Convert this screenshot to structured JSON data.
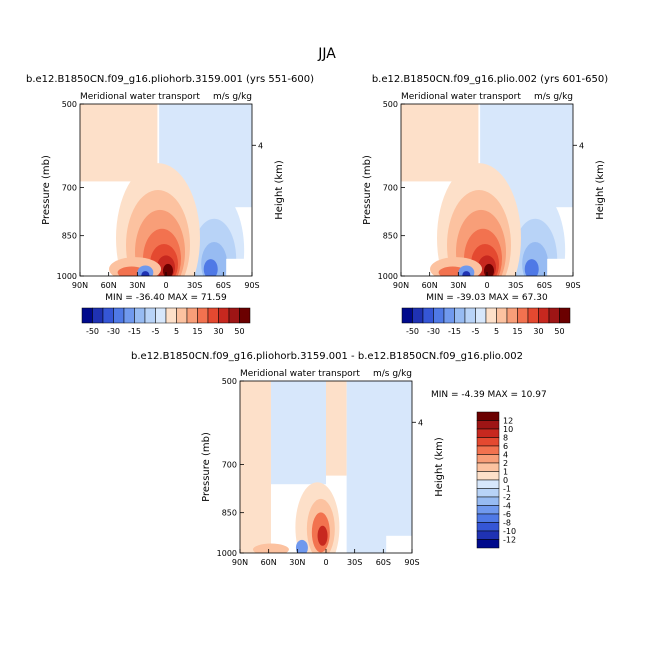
{
  "figure_title": "JJA",
  "colors": {
    "positive_scale": [
      "#fde0c9",
      "#fcc2a0",
      "#f89e78",
      "#f2724f",
      "#e44930",
      "#c7281f",
      "#9e1515",
      "#6b0000"
    ],
    "negative_scale": [
      "#d7e7fb",
      "#b8d3f7",
      "#97bbf2",
      "#7099ee",
      "#4f79e6",
      "#3556d6",
      "#1f32b3",
      "#000a8c"
    ],
    "neutral": "#ffffff"
  },
  "panels": [
    {
      "title": "b.e12.B1850CN.f09_g16.pliohorb.3159.001 (yrs 551-600)",
      "subtitle_left": "Meridional water transport",
      "subtitle_right": "m/s g/kg",
      "minmax_text": "MIN = -36.40   MAX =  71.59"
    },
    {
      "title": "b.e12.B1850CN.f09_g16.plio.002 (yrs 601-650)",
      "subtitle_left": "Meridional water transport",
      "subtitle_right": "m/s g/kg",
      "minmax_text": "MIN = -39.03   MAX =  67.30"
    },
    {
      "title": "b.e12.B1850CN.f09_g16.pliohorb.3159.001 - b.e12.B1850CN.f09_g16.plio.002",
      "subtitle_left": "Meridional water transport",
      "subtitle_right": "m/s g/kg",
      "minmax_text": "MIN =  -4.39   MAX =  10.97"
    }
  ],
  "axes": {
    "ylabel": "Pressure (mb)",
    "ylabel_right": "Height (km)",
    "yticks": [
      "500",
      "700",
      "850",
      "1000"
    ],
    "right_tick": "4",
    "xticks": [
      "90N",
      "60N",
      "30N",
      "0",
      "30S",
      "60S",
      "90S"
    ]
  },
  "colorbars": {
    "full_fields": {
      "orientation": "horizontal",
      "labels": [
        "-50",
        "-30",
        "-15",
        "-5",
        "5",
        "15",
        "30",
        "50"
      ]
    },
    "difference": {
      "orientation": "vertical",
      "labels": [
        "12",
        "10",
        "8",
        "6",
        "4",
        "2",
        "1",
        "0",
        "-1",
        "-2",
        "-4",
        "-6",
        "-8",
        "-10",
        "-12"
      ]
    }
  },
  "chart_data": [
    {
      "type": "heatmap",
      "title": "b.e12.B1850CN.f09_g16.pliohorb.3159.001 (yrs 551-600)",
      "xlabel": "",
      "ylabel": "Pressure (mb)",
      "xlim": [
        "90N",
        "90S"
      ],
      "ylim": [
        1000,
        500
      ],
      "y_scale": "log-pressure",
      "min": -36.4,
      "max": 71.59,
      "contour_levels": [
        -50,
        -40,
        -30,
        -20,
        -15,
        -10,
        -5,
        0,
        5,
        10,
        15,
        20,
        30,
        40,
        50
      ],
      "features": [
        {
          "lat": 5,
          "pressure": 960,
          "value": 71.59
        },
        {
          "lat": -35,
          "pressure": 970,
          "value": -25
        },
        {
          "lat": 37,
          "pressure": 985,
          "value": -36.4
        }
      ]
    },
    {
      "type": "heatmap",
      "title": "b.e12.B1850CN.f09_g16.plio.002 (yrs 601-650)",
      "xlabel": "",
      "ylabel": "Pressure (mb)",
      "xlim": [
        "90N",
        "90S"
      ],
      "ylim": [
        1000,
        500
      ],
      "y_scale": "log-pressure",
      "min": -39.03,
      "max": 67.3,
      "contour_levels": [
        -50,
        -40,
        -30,
        -20,
        -15,
        -10,
        -5,
        0,
        5,
        10,
        15,
        20,
        30,
        40,
        50
      ],
      "features": [
        {
          "lat": 2,
          "pressure": 960,
          "value": 67.3
        },
        {
          "lat": -35,
          "pressure": 970,
          "value": -25
        },
        {
          "lat": 37,
          "pressure": 985,
          "value": -39.03
        }
      ]
    },
    {
      "type": "heatmap",
      "title": "b.e12.B1850CN.f09_g16.pliohorb.3159.001 - b.e12.B1850CN.f09_g16.plio.002",
      "xlabel": "",
      "ylabel": "Pressure (mb)",
      "xlim": [
        "90N",
        "90S"
      ],
      "ylim": [
        1000,
        500
      ],
      "y_scale": "log-pressure",
      "min": -4.39,
      "max": 10.97,
      "contour_levels": [
        -12,
        -10,
        -8,
        -6,
        -4,
        -2,
        -1,
        0,
        1,
        2,
        4,
        6,
        8,
        10,
        12
      ],
      "features": [
        {
          "lat": 15,
          "pressure": 950,
          "value": 10.97
        },
        {
          "lat": 33,
          "pressure": 985,
          "value": -4.39
        },
        {
          "lat": -5,
          "pressure": 990,
          "value": 6
        }
      ]
    }
  ]
}
